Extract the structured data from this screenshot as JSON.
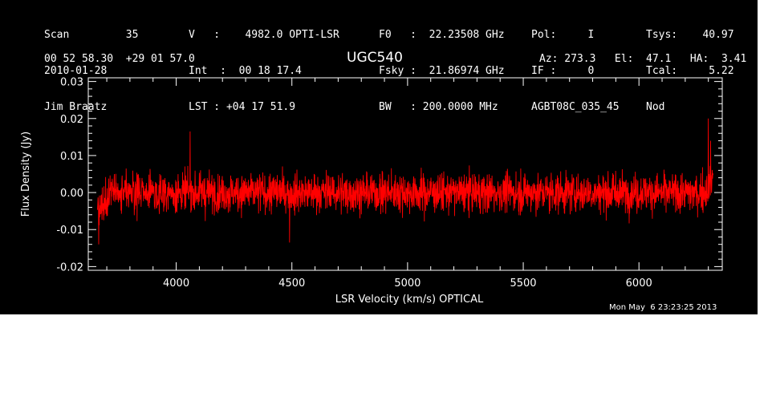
{
  "header": {
    "col1": [
      "Scan         35",
      "2010-01-28",
      "Jim Braatz"
    ],
    "col2": [
      "V   :    4982.0 OPTI-LSR",
      "Int  :  00 18 17.4",
      "LST : +04 17 51.9"
    ],
    "col3": [
      "F0   :  22.23508 GHz",
      "Fsky :  21.86974 GHz",
      "BW   : 200.0000 MHz"
    ],
    "col4": [
      "Pol:     I",
      "IF :     0",
      "AGBT08C_035_45"
    ],
    "col5": [
      "Tsys:    40.97",
      "Tcal:     5.22",
      "Nod"
    ],
    "coords": "00 52 58.30  +29 01 57.0",
    "source": "UGC540",
    "azel": "Az: 273.3   El:  47.1   HA:  3.41",
    "timestamp": "Mon May  6 23:23:25 2013"
  },
  "colors": {
    "background": "#000000",
    "axes": "#ffffff",
    "trace": "#ff0000"
  },
  "chart_data": {
    "type": "line",
    "xlabel": "LSR Velocity (km/s) OPTICAL",
    "ylabel": "Flux Density (Jy)",
    "xlim": [
      3620,
      6360
    ],
    "ylim": [
      -0.021,
      0.031
    ],
    "xticks": [
      4000,
      4500,
      5000,
      5500,
      6000
    ],
    "yticks": [
      -0.02,
      -0.01,
      0.0,
      0.01,
      0.02,
      0.03
    ],
    "ytick_labels": [
      "-0.02",
      "-0.01",
      "0.00",
      "0.01",
      "0.02",
      "0.03"
    ],
    "series": [
      {
        "x_start": 3660,
        "x_end": 6320,
        "baseline_y": 0.0,
        "noise_sigma_jy": 0.0045,
        "notable_points": [
          {
            "x": 3665,
            "y": -0.014
          },
          {
            "x": 4060,
            "y": 0.0165
          },
          {
            "x": 4490,
            "y": -0.0135
          },
          {
            "x": 6300,
            "y": 0.02
          },
          {
            "x": 6310,
            "y": 0.014
          }
        ]
      }
    ],
    "grid": false
  }
}
